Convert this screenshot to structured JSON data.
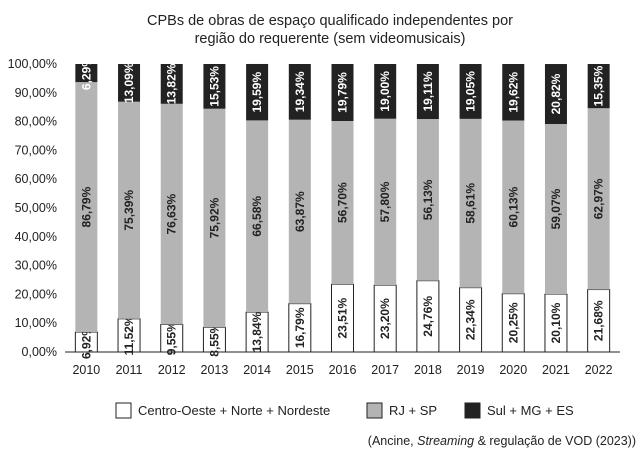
{
  "chart_data": {
    "type": "bar",
    "stacked": true,
    "title": "CPBs de obras de espaço qualificado independentes por região do requerente (sem videomusicais)",
    "title_lines": [
      "CPBs de obras de espaço qualificado independentes por",
      "região do requerente (sem videomusicais)"
    ],
    "categories": [
      "2010",
      "2011",
      "2012",
      "2013",
      "2014",
      "2015",
      "2016",
      "2017",
      "2018",
      "2019",
      "2020",
      "2021",
      "2022"
    ],
    "ylim": [
      0,
      100
    ],
    "yticks": [
      "0,00%",
      "10,00%",
      "20,00%",
      "30,00%",
      "40,00%",
      "50,00%",
      "60,00%",
      "70,00%",
      "80,00%",
      "90,00%",
      "100,00%"
    ],
    "series": [
      {
        "name": "Centro-Oeste + Norte + Nordeste",
        "color": "#ffffff",
        "values": [
          6.92,
          11.52,
          9.55,
          8.55,
          13.84,
          16.79,
          23.51,
          23.2,
          24.76,
          22.34,
          20.25,
          20.1,
          21.68
        ],
        "labels": [
          "6,92%",
          "11,52%",
          "9,55%",
          "8,55%",
          "13,84%",
          "16,79%",
          "23,51%",
          "23,20%",
          "24,76%",
          "22,34%",
          "20,25%",
          "20,10%",
          "21,68%"
        ]
      },
      {
        "name": "RJ + SP",
        "color": "#b4b4b4",
        "values": [
          86.79,
          75.39,
          76.63,
          75.92,
          66.58,
          63.87,
          56.7,
          57.8,
          56.13,
          58.61,
          60.13,
          59.07,
          62.97
        ],
        "labels": [
          "86,79%",
          "75,39%",
          "76,63%",
          "75,92%",
          "66,58%",
          "63,87%",
          "56,70%",
          "57,80%",
          "56,13%",
          "58,61%",
          "60,13%",
          "59,07%",
          "62,97%"
        ]
      },
      {
        "name": "Sul + MG + ES",
        "color": "#222222",
        "values": [
          6.29,
          13.09,
          13.82,
          15.53,
          19.59,
          19.34,
          19.79,
          19.0,
          19.11,
          19.05,
          19.62,
          20.82,
          15.35
        ],
        "labels": [
          "6,29%",
          "13,09%",
          "13,82%",
          "15,53%",
          "19,59%",
          "19,34%",
          "19,79%",
          "19,00%",
          "19,11%",
          "19,05%",
          "19,62%",
          "20,82%",
          "15,35%"
        ]
      }
    ],
    "legend_position": "bottom",
    "grid": false,
    "source_prefix": "(Ancine, ",
    "source_italic": "Streaming",
    "source_suffix": " & regulação de VOD (2023))"
  }
}
